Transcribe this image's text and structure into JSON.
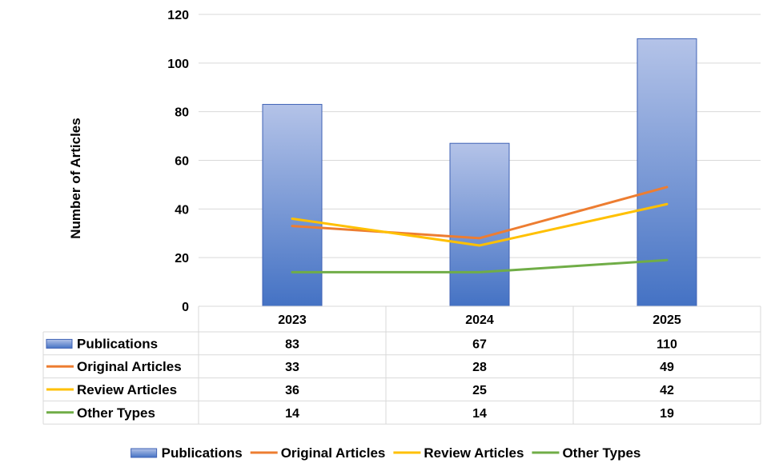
{
  "chart_data": {
    "type": "bar",
    "title": "",
    "xlabel": "",
    "ylabel": "Number of Articles",
    "ylim": [
      0,
      120
    ],
    "yticks": [
      0,
      20,
      40,
      60,
      80,
      100,
      120
    ],
    "grid": true,
    "categories": [
      "2023",
      "2024",
      "2025"
    ],
    "series": [
      {
        "name": "Publications",
        "kind": "bar",
        "color": "#4472C4",
        "values": [
          83,
          67,
          110
        ]
      },
      {
        "name": "Original Articles",
        "kind": "line",
        "color": "#ED7D31",
        "values": [
          33,
          28,
          49
        ]
      },
      {
        "name": "Review Articles",
        "kind": "line",
        "color": "#FFC000",
        "values": [
          36,
          25,
          42
        ]
      },
      {
        "name": "Other Types",
        "kind": "line",
        "color": "#70AD47",
        "values": [
          14,
          14,
          19
        ]
      }
    ],
    "legend_position": "bottom",
    "data_table": true
  }
}
